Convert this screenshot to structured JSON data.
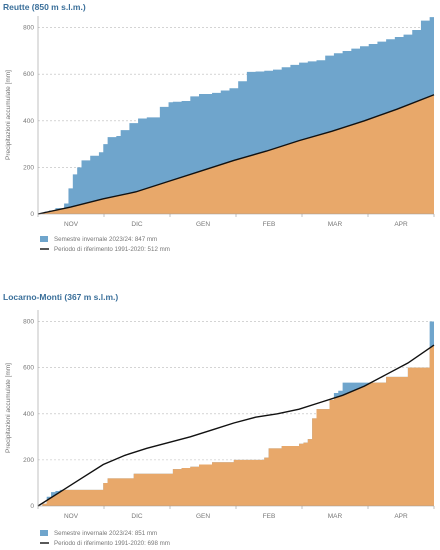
{
  "chart_data": [
    {
      "type": "area",
      "title": "Reutte (850 m s.l.m.)",
      "ylabel": "Precipitazioni accumulate [mm]",
      "xlabel": "",
      "ylim": [
        0,
        850
      ],
      "yticks": [
        0,
        200,
        400,
        600,
        800
      ],
      "months": [
        "NOV",
        "DIC",
        "GEN",
        "FEB",
        "MAR",
        "APR"
      ],
      "grid": true,
      "legend_position": "bottom-left",
      "colors": {
        "winter": "#6fa5cc",
        "reference": "#e8a86a",
        "line": "#111111"
      },
      "series": [
        {
          "name": "Semestre invernale 2023/24: 847 mm",
          "x": [
            0,
            3,
            5,
            8,
            12,
            14,
            16,
            18,
            20,
            24,
            28,
            30,
            32,
            36,
            38,
            42,
            46,
            50,
            56,
            60,
            62,
            66,
            70,
            74,
            80,
            84,
            88,
            92,
            96,
            100,
            104,
            108,
            112,
            116,
            120,
            124,
            128,
            132,
            136,
            140,
            144,
            148,
            152,
            156,
            160,
            164,
            168,
            172,
            176,
            180,
            182
          ],
          "values": [
            0,
            10,
            15,
            25,
            45,
            110,
            170,
            200,
            230,
            250,
            265,
            300,
            330,
            335,
            360,
            390,
            410,
            415,
            460,
            480,
            482,
            485,
            505,
            515,
            520,
            530,
            540,
            570,
            610,
            612,
            615,
            620,
            630,
            640,
            650,
            655,
            660,
            680,
            690,
            700,
            710,
            720,
            730,
            740,
            750,
            760,
            770,
            790,
            830,
            845,
            847
          ]
        },
        {
          "name": "Periodo di riferimento 1991-2020: 512 mm",
          "x": [
            0,
            15,
            30,
            45,
            60,
            75,
            90,
            105,
            120,
            135,
            150,
            165,
            182
          ],
          "values": [
            0,
            30,
            65,
            95,
            140,
            185,
            230,
            270,
            315,
            355,
            400,
            450,
            512
          ]
        }
      ]
    },
    {
      "type": "area",
      "title": "Locarno-Monti (367 m s.l.m.)",
      "ylabel": "Precipitazioni accumulate [mm]",
      "xlabel": "",
      "ylim": [
        0,
        850
      ],
      "yticks": [
        0,
        200,
        400,
        600,
        800
      ],
      "months": [
        "NOV",
        "DIC",
        "GEN",
        "FEB",
        "MAR",
        "APR"
      ],
      "grid": true,
      "legend_position": "bottom-left",
      "colors": {
        "winter": "#6fa5cc",
        "reference": "#e8a86a",
        "line": "#111111"
      },
      "series": [
        {
          "name": "Semestre invernale 2023/24: 851 mm",
          "x": [
            0,
            2,
            4,
            6,
            8,
            10,
            12,
            14,
            26,
            28,
            30,
            32,
            42,
            44,
            60,
            62,
            66,
            70,
            74,
            80,
            90,
            92,
            96,
            100,
            104,
            106,
            112,
            120,
            122,
            124,
            126,
            128,
            134,
            136,
            138,
            140,
            146,
            150,
            160,
            170,
            180,
            182
          ],
          "values": [
            0,
            10,
            40,
            60,
            65,
            70,
            70,
            70,
            70,
            70,
            100,
            120,
            120,
            140,
            140,
            160,
            165,
            170,
            180,
            190,
            200,
            200,
            200,
            200,
            210,
            250,
            260,
            270,
            275,
            290,
            380,
            420,
            460,
            490,
            500,
            535,
            535,
            535,
            560,
            600,
            800,
            851
          ]
        },
        {
          "name": "Periodo di riferimento 1991-2020: 698 mm",
          "x": [
            0,
            10,
            20,
            30,
            40,
            50,
            60,
            70,
            80,
            90,
            100,
            110,
            120,
            130,
            140,
            150,
            160,
            170,
            182
          ],
          "values": [
            0,
            60,
            120,
            180,
            220,
            250,
            275,
            300,
            330,
            360,
            385,
            400,
            420,
            450,
            480,
            520,
            570,
            620,
            698
          ]
        }
      ]
    }
  ]
}
